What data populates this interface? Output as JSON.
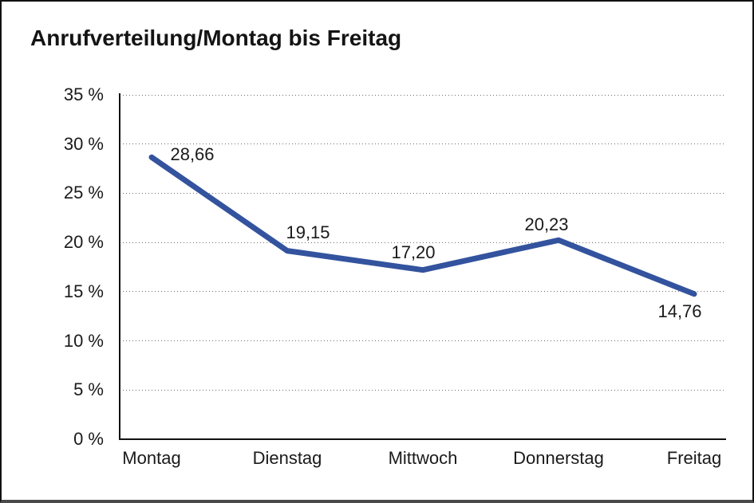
{
  "title": "Anrufverteilung/Montag bis Freitag",
  "chart_data": {
    "type": "line",
    "title": "Anrufverteilung/Montag bis Freitag",
    "categories": [
      "Montag",
      "Dienstag",
      "Mittwoch",
      "Donnerstag",
      "Freitag"
    ],
    "values": [
      28.66,
      19.15,
      17.2,
      20.23,
      14.76
    ],
    "value_labels": [
      "28,66",
      "19,15",
      "17,20",
      "20,23",
      "14,76"
    ],
    "y_ticks": [
      {
        "value": 0,
        "label": "0 %"
      },
      {
        "value": 5,
        "label": "5 %"
      },
      {
        "value": 10,
        "label": "10 %"
      },
      {
        "value": 15,
        "label": "15 %"
      },
      {
        "value": 20,
        "label": "20 %"
      },
      {
        "value": 25,
        "label": "25 %"
      },
      {
        "value": 30,
        "label": "30 %"
      },
      {
        "value": 35,
        "label": "35 %"
      }
    ],
    "ylim": [
      0,
      35
    ],
    "xlabel": "",
    "ylabel": "",
    "grid": "horizontal-dotted",
    "legend": "none",
    "line_color": "#33539E",
    "grid_color": "#6e6e6e",
    "axis_color": "#111111",
    "text_color": "#1a1a1a"
  }
}
